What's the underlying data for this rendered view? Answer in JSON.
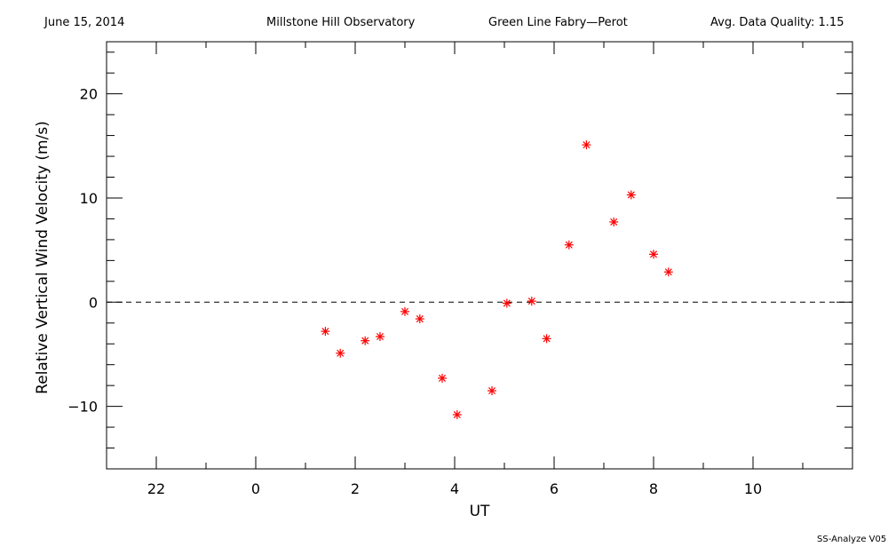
{
  "header": {
    "date": "June 15, 2014",
    "observatory": "Millstone Hill Observatory",
    "instrument": "Green Line Fabry—Perot",
    "quality": "Avg. Data Quality: 1.15"
  },
  "footer": "SS-Analyze V05",
  "chart_data": {
    "type": "scatter",
    "xlabel": "UT",
    "ylabel": "Relative Vertical Wind Velocity (m/s)",
    "x_tick_labels": [
      "22",
      "0",
      "2",
      "4",
      "6",
      "8",
      "10"
    ],
    "y_tick_labels": [
      "−10",
      "0",
      "10",
      "20"
    ],
    "xlim": [
      -3,
      12
    ],
    "ylim": [
      -16,
      25
    ],
    "zero_line": true,
    "marker": "asterisk",
    "marker_color": "#ff0000",
    "points": [
      {
        "x": 1.4,
        "y": -2.8
      },
      {
        "x": 1.7,
        "y": -4.9
      },
      {
        "x": 2.2,
        "y": -3.7
      },
      {
        "x": 2.5,
        "y": -3.3
      },
      {
        "x": 3.0,
        "y": -0.9
      },
      {
        "x": 3.3,
        "y": -1.6
      },
      {
        "x": 3.75,
        "y": -7.3
      },
      {
        "x": 4.05,
        "y": -10.8
      },
      {
        "x": 4.75,
        "y": -8.5
      },
      {
        "x": 5.05,
        "y": -0.1
      },
      {
        "x": 5.55,
        "y": 0.1
      },
      {
        "x": 5.85,
        "y": -3.5
      },
      {
        "x": 6.3,
        "y": 5.5
      },
      {
        "x": 6.65,
        "y": 15.1
      },
      {
        "x": 7.2,
        "y": 7.7
      },
      {
        "x": 7.55,
        "y": 10.3
      },
      {
        "x": 8.0,
        "y": 4.6
      },
      {
        "x": 8.3,
        "y": 2.9
      }
    ]
  }
}
